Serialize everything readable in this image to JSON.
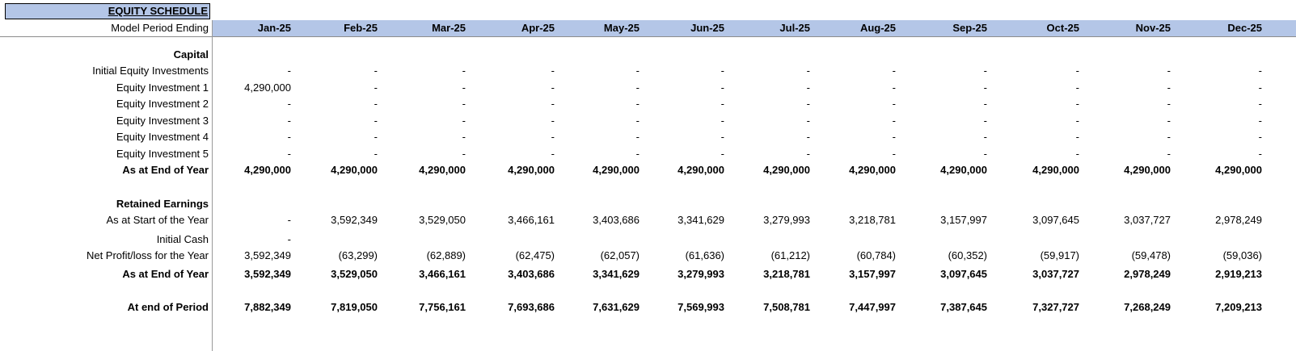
{
  "title": "EQUITY SCHEDULE",
  "header_label": "Model Period Ending",
  "periods": [
    "Jan-25",
    "Feb-25",
    "Mar-25",
    "Apr-25",
    "May-25",
    "Jun-25",
    "Jul-25",
    "Aug-25",
    "Sep-25",
    "Oct-25",
    "Nov-25",
    "Dec-25"
  ],
  "rows": [
    {
      "label": "Capital",
      "bold": true,
      "values": []
    },
    {
      "label": "Initial Equity Investments",
      "bold": false,
      "values": [
        "-",
        "-",
        "-",
        "-",
        "-",
        "-",
        "-",
        "-",
        "-",
        "-",
        "-",
        "-"
      ]
    },
    {
      "label": "Equity Investment 1",
      "bold": false,
      "values": [
        "4,290,000",
        "-",
        "-",
        "-",
        "-",
        "-",
        "-",
        "-",
        "-",
        "-",
        "-",
        "-"
      ]
    },
    {
      "label": "Equity Investment 2",
      "bold": false,
      "values": [
        "-",
        "-",
        "-",
        "-",
        "-",
        "-",
        "-",
        "-",
        "-",
        "-",
        "-",
        "-"
      ]
    },
    {
      "label": "Equity Investment 3",
      "bold": false,
      "values": [
        "-",
        "-",
        "-",
        "-",
        "-",
        "-",
        "-",
        "-",
        "-",
        "-",
        "-",
        "-"
      ]
    },
    {
      "label": "Equity Investment 4",
      "bold": false,
      "values": [
        "-",
        "-",
        "-",
        "-",
        "-",
        "-",
        "-",
        "-",
        "-",
        "-",
        "-",
        "-"
      ]
    },
    {
      "label": "Equity Investment 5",
      "bold": false,
      "values": [
        "-",
        "-",
        "-",
        "-",
        "-",
        "-",
        "-",
        "-",
        "-",
        "-",
        "-",
        "-"
      ]
    },
    {
      "label": "As at End of Year",
      "bold": true,
      "values": [
        "4,290,000",
        "4,290,000",
        "4,290,000",
        "4,290,000",
        "4,290,000",
        "4,290,000",
        "4,290,000",
        "4,290,000",
        "4,290,000",
        "4,290,000",
        "4,290,000",
        "4,290,000"
      ]
    },
    {
      "label": "Retained Earnings",
      "bold": true,
      "values": []
    },
    {
      "label": "As at Start of the Year",
      "bold": false,
      "values": [
        "-",
        "3,592,349",
        "3,529,050",
        "3,466,161",
        "3,403,686",
        "3,341,629",
        "3,279,993",
        "3,218,781",
        "3,157,997",
        "3,097,645",
        "3,037,727",
        "2,978,249"
      ]
    },
    {
      "label": "Initial Cash",
      "bold": false,
      "values": [
        "-"
      ]
    },
    {
      "label": "Net Profit/loss for the Year",
      "bold": false,
      "values": [
        "3,592,349",
        "(63,299)",
        "(62,889)",
        "(62,475)",
        "(62,057)",
        "(61,636)",
        "(61,212)",
        "(60,784)",
        "(60,352)",
        "(59,917)",
        "(59,478)",
        "(59,036)"
      ]
    },
    {
      "label": "As at End of Year",
      "bold": true,
      "values": [
        "3,592,349",
        "3,529,050",
        "3,466,161",
        "3,403,686",
        "3,341,629",
        "3,279,993",
        "3,218,781",
        "3,157,997",
        "3,097,645",
        "3,037,727",
        "2,978,249",
        "2,919,213"
      ]
    },
    {
      "label": "At end of Period",
      "bold": true,
      "values": [
        "7,882,349",
        "7,819,050",
        "7,756,161",
        "7,693,686",
        "7,631,629",
        "7,569,993",
        "7,508,781",
        "7,447,997",
        "7,387,645",
        "7,327,727",
        "7,268,249",
        "7,209,213"
      ]
    }
  ]
}
